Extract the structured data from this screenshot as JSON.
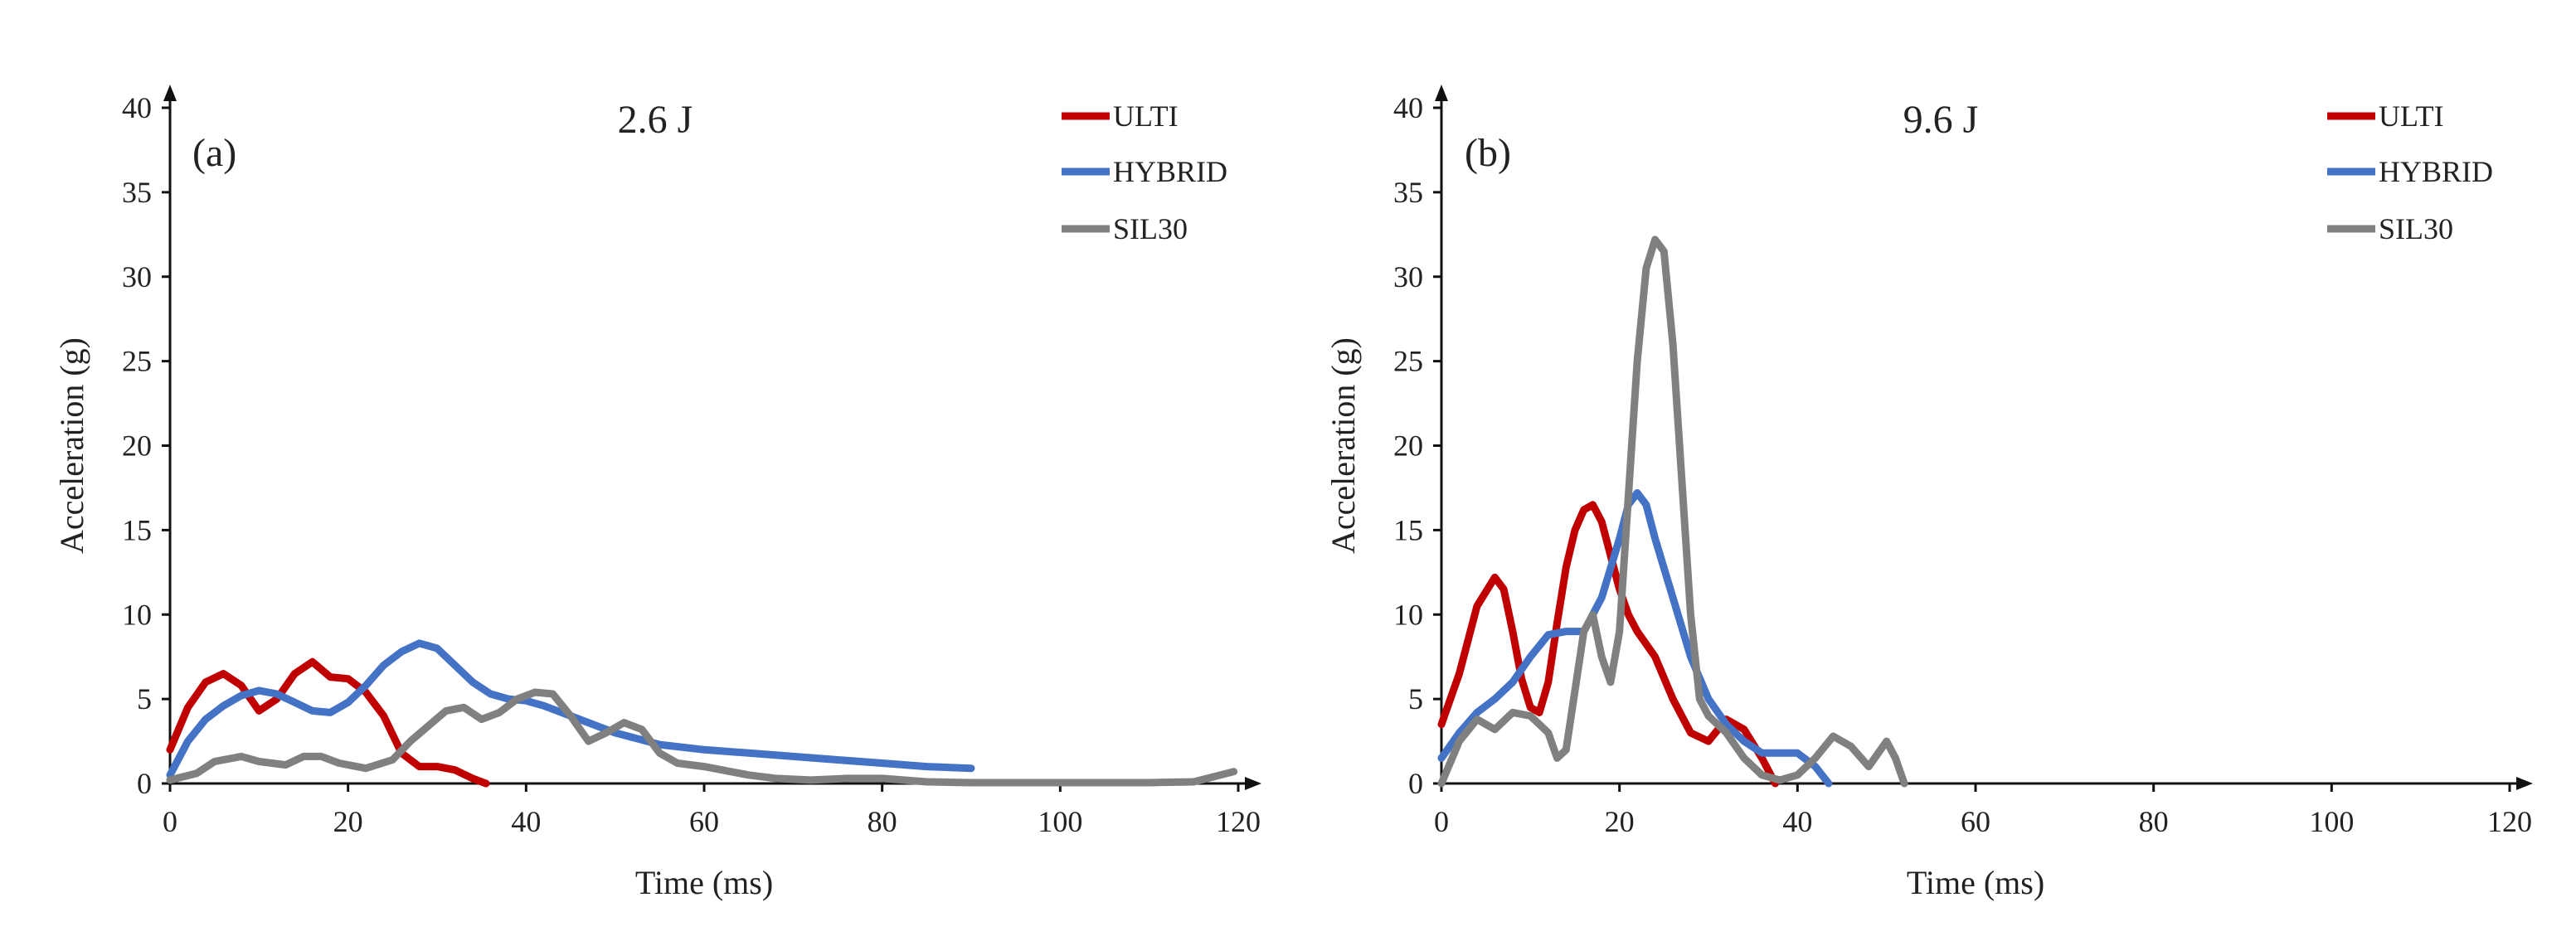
{
  "chart_data": [
    {
      "type": "line",
      "panel_label": "(a)",
      "title": "2.6 J",
      "xlabel": "Time (ms)",
      "ylabel": "Acceleration (g)",
      "xlim": [
        0,
        120
      ],
      "ylim": [
        0,
        40
      ],
      "xticks": [
        "0",
        "20",
        "40",
        "60",
        "80",
        "100",
        "120"
      ],
      "yticks": [
        "0",
        "5",
        "10",
        "15",
        "20",
        "25",
        "30",
        "35",
        "40"
      ],
      "grid": false,
      "legend": "top-right",
      "series": [
        {
          "name": "ULTI",
          "color": "#c00000",
          "x": [
            0,
            2,
            4,
            6,
            8,
            10,
            12,
            14,
            16,
            18,
            20,
            22,
            24,
            26,
            28,
            30,
            32,
            34,
            35.5
          ],
          "y": [
            2.0,
            4.5,
            6.0,
            6.5,
            5.8,
            4.3,
            5.0,
            6.5,
            7.2,
            6.3,
            6.2,
            5.4,
            4.0,
            1.8,
            1.0,
            1.0,
            0.8,
            0.3,
            0.0
          ]
        },
        {
          "name": "HYBRID",
          "color": "#4472c4",
          "x": [
            0,
            2,
            4,
            6,
            8,
            10,
            12,
            14,
            16,
            18,
            20,
            22,
            24,
            26,
            28,
            30,
            32,
            34,
            36,
            38,
            40,
            42,
            45,
            50,
            55,
            60,
            65,
            70,
            75,
            80,
            85,
            90
          ],
          "y": [
            0.5,
            2.5,
            3.8,
            4.6,
            5.2,
            5.5,
            5.3,
            4.8,
            4.3,
            4.2,
            4.8,
            5.8,
            7.0,
            7.8,
            8.3,
            8.0,
            7.0,
            6.0,
            5.3,
            5.0,
            4.9,
            4.6,
            4.0,
            3.0,
            2.3,
            2.0,
            1.8,
            1.6,
            1.4,
            1.2,
            1.0,
            0.9
          ]
        },
        {
          "name": "SIL30",
          "color": "#808080",
          "x": [
            0,
            3,
            5,
            8,
            10,
            13,
            15,
            17,
            19,
            22,
            25,
            27,
            29,
            31,
            33,
            35,
            37,
            39,
            41,
            43,
            45,
            47,
            49,
            51,
            53,
            55,
            57,
            60,
            62,
            65,
            68,
            72,
            76,
            80,
            85,
            90,
            95,
            100,
            105,
            110,
            115,
            118,
            119.5
          ],
          "y": [
            0.2,
            0.6,
            1.3,
            1.6,
            1.3,
            1.1,
            1.6,
            1.6,
            1.2,
            0.9,
            1.4,
            2.5,
            3.4,
            4.3,
            4.5,
            3.8,
            4.2,
            5.0,
            5.4,
            5.3,
            4.0,
            2.5,
            3.0,
            3.6,
            3.2,
            1.8,
            1.2,
            1.0,
            0.8,
            0.5,
            0.3,
            0.2,
            0.3,
            0.3,
            0.1,
            0.05,
            0.05,
            0.05,
            0.05,
            0.05,
            0.1,
            0.5,
            0.7
          ]
        }
      ]
    },
    {
      "type": "line",
      "panel_label": "(b)",
      "title": "9.6 J",
      "xlabel": "Time (ms)",
      "ylabel": "Acceleration (g)",
      "xlim": [
        0,
        120
      ],
      "ylim": [
        0,
        40
      ],
      "xticks": [
        "0",
        "20",
        "40",
        "60",
        "80",
        "100",
        "120"
      ],
      "yticks": [
        "0",
        "5",
        "10",
        "15",
        "20",
        "25",
        "30",
        "35",
        "40"
      ],
      "grid": false,
      "legend": "top-right",
      "series": [
        {
          "name": "ULTI",
          "color": "#c00000",
          "x": [
            0,
            2,
            4,
            6,
            7,
            8,
            9,
            10,
            11,
            12,
            13,
            14,
            15,
            16,
            17,
            18,
            19,
            20,
            21,
            22,
            24,
            26,
            28,
            30,
            32,
            34,
            36,
            37.5
          ],
          "y": [
            3.5,
            6.5,
            10.5,
            12.2,
            11.5,
            9.0,
            6.2,
            4.5,
            4.2,
            6.0,
            9.5,
            12.8,
            15.0,
            16.2,
            16.5,
            15.5,
            13.5,
            11.5,
            10.0,
            9.0,
            7.5,
            5.0,
            3.0,
            2.5,
            3.8,
            3.2,
            1.5,
            0.0
          ]
        },
        {
          "name": "HYBRID",
          "color": "#4472c4",
          "x": [
            0,
            2,
            4,
            6,
            8,
            10,
            12,
            14,
            16,
            18,
            20,
            21,
            22,
            23,
            24,
            26,
            28,
            30,
            32,
            34,
            36,
            38,
            40,
            42,
            43.5
          ],
          "y": [
            1.5,
            3.0,
            4.2,
            5.0,
            6.0,
            7.5,
            8.8,
            9.0,
            9.0,
            11.0,
            14.5,
            16.5,
            17.2,
            16.5,
            14.5,
            11.0,
            7.5,
            5.0,
            3.5,
            2.5,
            1.8,
            1.8,
            1.8,
            1.0,
            0.0
          ]
        },
        {
          "name": "SIL30",
          "color": "#808080",
          "x": [
            0,
            2,
            4,
            6,
            8,
            10,
            12,
            13,
            14,
            15,
            16,
            17,
            18,
            19,
            20,
            21,
            22,
            23,
            24,
            25,
            26,
            27,
            28,
            29,
            30,
            32,
            34,
            36,
            38,
            40,
            42,
            44,
            46,
            48,
            50,
            51,
            52
          ],
          "y": [
            0.0,
            2.5,
            3.8,
            3.2,
            4.2,
            4.0,
            3.0,
            1.5,
            2.0,
            5.5,
            9.0,
            10.0,
            7.5,
            6.0,
            9.0,
            17.0,
            25.0,
            30.5,
            32.2,
            31.5,
            26.0,
            18.0,
            10.0,
            5.0,
            4.0,
            3.0,
            1.5,
            0.5,
            0.2,
            0.5,
            1.5,
            2.8,
            2.2,
            1.0,
            2.5,
            1.5,
            0.0
          ]
        }
      ]
    }
  ]
}
